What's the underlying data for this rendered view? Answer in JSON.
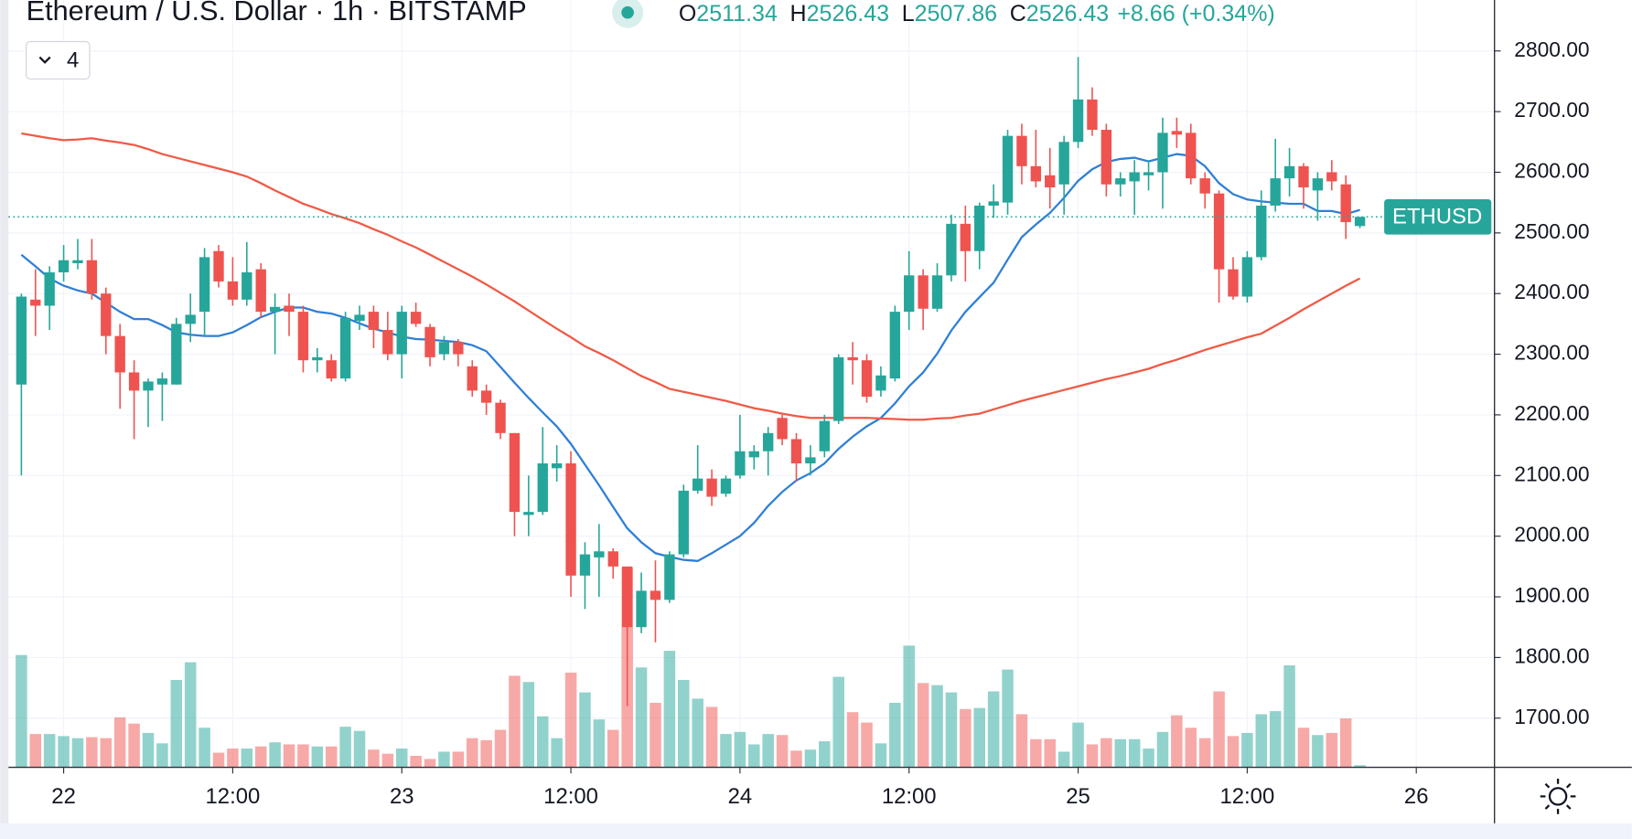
{
  "chart_data": {
    "type": "candlestick",
    "title": "Ethereum / U.S. Dollar · 1h · BITSTAMP",
    "ohlc_letters": [
      "O",
      "H",
      "L",
      "C"
    ],
    "change": "+8.66 (+0.34%)",
    "indicator_count": 4,
    "symbol_label": "ETHUSD",
    "up_color": "#26a69a",
    "down_color": "#ef5350",
    "grid": true,
    "categories": [
      null,
      null,
      null,
      "22",
      null,
      null,
      null,
      null,
      null,
      null,
      null,
      null,
      null,
      null,
      null,
      "12:00",
      null,
      null,
      null,
      null,
      null,
      null,
      null,
      null,
      null,
      null,
      null,
      "23",
      null,
      null,
      null,
      null,
      null,
      null,
      null,
      null,
      null,
      null,
      null,
      "12:00",
      null,
      null,
      null,
      null,
      null,
      null,
      null,
      null,
      null,
      null,
      null,
      "24",
      null,
      null,
      null,
      null,
      null,
      null,
      null,
      null,
      null,
      null,
      null,
      "12:00",
      null,
      null,
      null,
      null,
      null,
      null,
      null,
      null,
      null,
      null,
      null,
      "25",
      null,
      null,
      null,
      null,
      null,
      null,
      null,
      null,
      null,
      null,
      null,
      "12:00",
      null,
      null,
      null,
      null,
      null,
      null,
      null,
      null,
      null,
      null,
      null,
      "26"
    ],
    "open": [
      2250,
      2390,
      2380,
      2435,
      2450,
      2455,
      2400,
      2330,
      2270,
      2240,
      2250,
      2250,
      2350,
      2370,
      2470,
      2420,
      2390,
      2440,
      2370,
      2380,
      2370,
      2290,
      2290,
      2260,
      2355,
      2370,
      2340,
      2300,
      2370,
      2345,
      2300,
      2320,
      2280,
      2240,
      2220,
      2170,
      2035,
      2040,
      2112,
      2120,
      1935,
      1965,
      1975,
      1950,
      1850,
      1910,
      1895,
      1970,
      2075,
      2095,
      2070,
      2100,
      2130,
      2140,
      2195,
      2160,
      2120,
      2140,
      2190,
      2295,
      2290,
      2240,
      2260,
      2370,
      2430,
      2375,
      2430,
      2515,
      2470,
      2545,
      2550,
      2660,
      2610,
      2595,
      2580,
      2650,
      2720,
      2670,
      2580,
      2585,
      2595,
      2600,
      2668,
      2665,
      2590,
      2565,
      2440,
      2395,
      2460,
      2545,
      2590,
      2610,
      2570,
      2600,
      2580,
      2511.34,
      null,
      null,
      null,
      null
    ],
    "high": [
      2400,
      2440,
      2445,
      2480,
      2490,
      2490,
      2410,
      2350,
      2290,
      2260,
      2270,
      2360,
      2400,
      2475,
      2480,
      2460,
      2485,
      2450,
      2400,
      2400,
      2380,
      2310,
      2300,
      2370,
      2380,
      2380,
      2370,
      2380,
      2385,
      2350,
      2330,
      2325,
      2290,
      2250,
      2225,
      2170,
      2100,
      2180,
      2150,
      2140,
      1990,
      2020,
      1980,
      1950,
      1940,
      1960,
      1975,
      2085,
      2150,
      2110,
      2100,
      2200,
      2150,
      2180,
      2200,
      2170,
      2150,
      2200,
      2300,
      2320,
      2300,
      2280,
      2380,
      2470,
      2440,
      2450,
      2530,
      2545,
      2550,
      2580,
      2670,
      2680,
      2670,
      2640,
      2660,
      2790,
      2740,
      2680,
      2600,
      2620,
      2620,
      2690,
      2690,
      2680,
      2600,
      2570,
      2460,
      2470,
      2570,
      2655,
      2640,
      2615,
      2600,
      2620,
      2595,
      2526.43,
      null,
      null,
      null,
      null
    ],
    "low": [
      2100,
      2330,
      2340,
      2420,
      2440,
      2390,
      2300,
      2210,
      2160,
      2180,
      2190,
      2250,
      2320,
      2330,
      2410,
      2380,
      2380,
      2360,
      2300,
      2330,
      2270,
      2270,
      2255,
      2255,
      2340,
      2310,
      2290,
      2260,
      2345,
      2280,
      2290,
      2280,
      2230,
      2200,
      2160,
      2000,
      2000,
      2035,
      2090,
      1900,
      1880,
      1900,
      1930,
      1720,
      1840,
      1825,
      1890,
      1965,
      2070,
      2050,
      2065,
      2095,
      2110,
      2100,
      2150,
      2090,
      2100,
      2130,
      2185,
      2250,
      2220,
      2230,
      2255,
      2340,
      2340,
      2370,
      2420,
      2420,
      2440,
      2525,
      2530,
      2580,
      2575,
      2540,
      2530,
      2640,
      2660,
      2560,
      2560,
      2530,
      2570,
      2540,
      2640,
      2580,
      2540,
      2385,
      2390,
      2385,
      2455,
      2535,
      2560,
      2540,
      2520,
      2570,
      2490,
      2507.86,
      null,
      null,
      null,
      null
    ],
    "close": [
      2395,
      2380,
      2435,
      2455,
      2455,
      2400,
      2330,
      2270,
      2240,
      2255,
      2260,
      2350,
      2365,
      2460,
      2420,
      2390,
      2435,
      2370,
      2378,
      2370,
      2290,
      2295,
      2260,
      2360,
      2365,
      2340,
      2300,
      2370,
      2350,
      2295,
      2320,
      2300,
      2240,
      2220,
      2170,
      2040,
      2040,
      2120,
      2120,
      1935,
      1970,
      1975,
      1950,
      1850,
      1910,
      1895,
      1970,
      2075,
      2095,
      2065,
      2095,
      2140,
      2140,
      2170,
      2160,
      2120,
      2130,
      2190,
      2295,
      2290,
      2230,
      2265,
      2370,
      2430,
      2375,
      2430,
      2515,
      2470,
      2545,
      2552,
      2660,
      2610,
      2585,
      2575,
      2650,
      2720,
      2670,
      2580,
      2590,
      2600,
      2600,
      2665,
      2662,
      2590,
      2565,
      2440,
      2395,
      2460,
      2545,
      2590,
      2610,
      2575,
      2590,
      2585,
      2517.77,
      2526.43,
      null,
      null,
      null,
      null
    ],
    "volume": [
      108,
      32,
      32,
      30,
      28,
      29,
      28,
      48,
      42,
      33,
      23,
      84,
      101,
      38,
      14,
      18,
      18,
      20,
      24,
      22,
      22,
      20,
      20,
      39,
      35,
      17,
      13,
      18,
      11,
      8,
      15,
      15,
      28,
      26,
      36,
      88,
      82,
      49,
      28,
      91,
      72,
      46,
      36,
      192,
      96,
      62,
      112,
      84,
      66,
      58,
      32,
      34,
      22,
      32,
      31,
      16,
      17,
      25,
      87,
      53,
      43,
      23,
      62,
      117,
      81,
      79,
      72,
      56,
      57,
      73,
      94,
      51,
      27,
      27,
      15,
      43,
      22,
      28,
      27,
      27,
      18,
      34,
      50,
      38,
      28,
      73,
      30,
      33,
      51,
      54,
      98,
      38,
      31,
      33,
      47,
      2,
      null,
      null,
      null,
      null
    ],
    "volume_ylim": [
      0,
      250
    ],
    "ma_lines": [
      {
        "color": "#2f7fd6",
        "values": [
          2464,
          2445,
          2425,
          2413,
          2405,
          2400,
          2385,
          2370,
          2358,
          2358,
          2348,
          2336,
          2332,
          2330,
          2330,
          2336,
          2348,
          2361,
          2370,
          2377,
          2377,
          2370,
          2367,
          2360,
          2351,
          2342,
          2336,
          2329,
          2325,
          2324,
          2322,
          2320,
          2315,
          2305,
          2279,
          2253,
          2228,
          2204,
          2181,
          2152,
          2118,
          2084,
          2048,
          2013,
          1990,
          1972,
          1966,
          1961,
          1959,
          1972,
          1986,
          2000,
          2022,
          2050,
          2073,
          2092,
          2104,
          2120,
          2144,
          2164,
          2181,
          2195,
          2219,
          2247,
          2270,
          2301,
          2339,
          2370,
          2394,
          2418,
          2456,
          2493,
          2514,
          2533,
          2558,
          2586,
          2605,
          2617,
          2622,
          2624,
          2618,
          2624,
          2630,
          2627,
          2610,
          2582,
          2564,
          2555,
          2552,
          2550,
          2548,
          2548,
          2536,
          2536,
          2531,
          2538,
          null,
          null,
          null,
          null
        ]
      },
      {
        "color": "#ef5a45",
        "values": [
          2664,
          2660,
          2656,
          2653,
          2654,
          2656,
          2652,
          2649,
          2645,
          2638,
          2630,
          2624,
          2618,
          2612,
          2606,
          2600,
          2593,
          2582,
          2570,
          2559,
          2548,
          2540,
          2531,
          2524,
          2516,
          2506,
          2497,
          2486,
          2476,
          2464,
          2452,
          2440,
          2428,
          2415,
          2401,
          2387,
          2372,
          2357,
          2342,
          2328,
          2313,
          2302,
          2290,
          2277,
          2264,
          2254,
          2243,
          2238,
          2233,
          2228,
          2223,
          2217,
          2211,
          2207,
          2202,
          2198,
          2195,
          2195,
          2195,
          2195,
          2195,
          2194,
          2193,
          2192,
          2192,
          2194,
          2195,
          2199,
          2202,
          2209,
          2216,
          2223,
          2229,
          2235,
          2241,
          2247,
          2253,
          2259,
          2264,
          2270,
          2276,
          2284,
          2291,
          2299,
          2307,
          2314,
          2321,
          2328,
          2334,
          2347,
          2360,
          2374,
          2387,
          2400,
          2413,
          2425,
          null,
          null,
          null,
          null
        ]
      }
    ],
    "ylim": [
      1619,
      2884
    ],
    "yticks": [
      {
        "value": 1700,
        "label": "1700.00"
      },
      {
        "value": 1800,
        "label": "1800.00"
      },
      {
        "value": 1900,
        "label": "1900.00"
      },
      {
        "value": 2000,
        "label": "2000.00"
      },
      {
        "value": 2100,
        "label": "2100.00"
      },
      {
        "value": 2200,
        "label": "2200.00"
      },
      {
        "value": 2300,
        "label": "2300.00"
      },
      {
        "value": 2400,
        "label": "2400.00"
      },
      {
        "value": 2500,
        "label": "2500.00"
      },
      {
        "value": 2600,
        "label": "2600.00"
      },
      {
        "value": 2700,
        "label": "2700.00"
      },
      {
        "value": 2800,
        "label": "2800.00"
      }
    ]
  }
}
